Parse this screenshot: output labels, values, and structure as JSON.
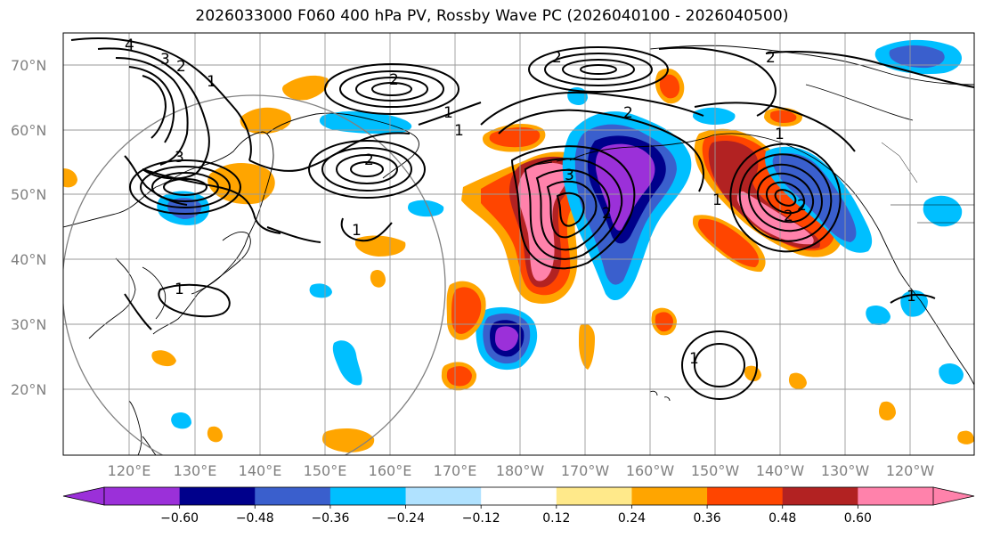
{
  "title": "2026033000 F060 400 hPa PV, Rossby Wave PC (2026040100 - 2026040500)",
  "lat_labels": [
    "70°N",
    "60°N",
    "50°N",
    "40°N",
    "30°N",
    "20°N"
  ],
  "lon_labels": [
    "120°E",
    "130°E",
    "140°E",
    "150°E",
    "160°E",
    "170°E",
    "180°W",
    "170°W",
    "160°W",
    "150°W",
    "140°W",
    "130°W",
    "120°W"
  ],
  "colorbar": {
    "levels": [
      "−0.60",
      "−0.48",
      "−0.36",
      "−0.24",
      "−0.12",
      "0.12",
      "0.24",
      "0.36",
      "0.48",
      "0.60"
    ],
    "colors": [
      "#9b30d9",
      "#00008b",
      "#3a5fcd",
      "#00bfff",
      "#b0e2ff",
      "#ffffff",
      "#ffe98a",
      "#ffa500",
      "#ff4500",
      "#b22222",
      "#ff82ab"
    ]
  },
  "contour_labels": [
    "4",
    "3",
    "2",
    "1",
    "2",
    "1",
    "2",
    "2",
    "1",
    "3",
    "2",
    "1",
    "1",
    "3",
    "2",
    "1",
    "2",
    "2",
    "1",
    "1",
    "1",
    "2"
  ],
  "map_colors": {
    "purple": "#9b30d9",
    "navy": "#00008b",
    "royal": "#3a5fcd",
    "sky": "#00bfff",
    "lightblue": "#b0e2ff",
    "yellow": "#ffe98a",
    "orange": "#ffa500",
    "redorange": "#ff4500",
    "firebrick": "#b22222",
    "pink": "#ff82ab"
  }
}
